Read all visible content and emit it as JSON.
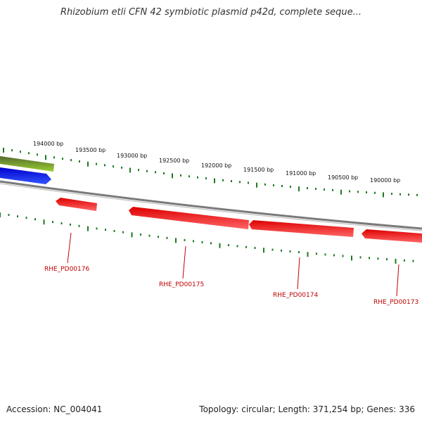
{
  "title": "Rhizobium etli CFN 42 symbiotic plasmid p42d, complete seque...",
  "footer": {
    "accession": "Accession: NC_004041",
    "summary": "Topology: circular; Length: 371,254 bp; Genes: 336"
  },
  "scale": {
    "labels": [
      "194000 bp",
      "193500 bp",
      "193000 bp",
      "192500 bp",
      "192000 bp",
      "191500 bp",
      "191000 bp",
      "190500 bp",
      "190000 bp"
    ]
  },
  "genes": [
    {
      "name": "RHE_PD00176"
    },
    {
      "name": "RHE_PD00175"
    },
    {
      "name": "RHE_PD00174"
    },
    {
      "name": "RHE_PD00173"
    }
  ],
  "colors": {
    "plus_strand": "#0000ee",
    "feature_green": "#6b8e23",
    "minus_strand_gene": "#ee0000",
    "backbone": "#808080",
    "tick": "#1e7b1e",
    "gene_label": "#c00000"
  }
}
